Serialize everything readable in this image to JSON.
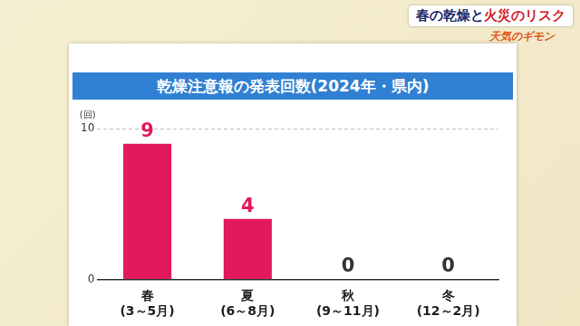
{
  "chart_data": {
    "type": "bar",
    "title": "乾燥注意報の発表回数(2024年・県内)",
    "y_label": "(回)",
    "categories": [
      "春\n(3～5月)",
      "夏\n(6～8月)",
      "秋\n(9～11月)",
      "冬\n(12～2月)"
    ],
    "values": [
      9,
      4,
      0,
      0
    ],
    "color": "#e2195f",
    "ylim": [
      0,
      10
    ],
    "yticks": [
      0,
      10
    ],
    "grid": true,
    "data_labels": true
  },
  "header": {
    "title_parts": [
      "春の乾燥と",
      "火災のリスク"
    ],
    "logo": "天気のギモン"
  }
}
